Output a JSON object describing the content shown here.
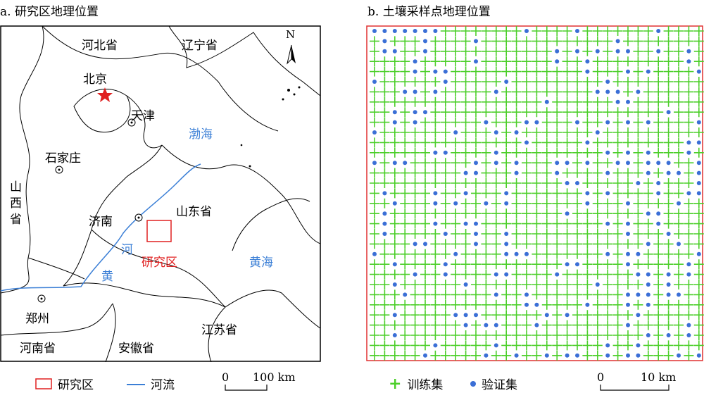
{
  "panel_a": {
    "title": "a. 研究区地理位置",
    "labels": {
      "hebei": "河北省",
      "liaoning": "辽宁省",
      "beijing": "北京",
      "tianjin": "天津",
      "bohai": "渤海",
      "shijiazhuang": "石家庄",
      "shanxi": "山西省",
      "jinan": "济南",
      "shandong": "山东省",
      "he": "河",
      "huang": "黄",
      "study_area": "研究区",
      "huanghai": "黄海",
      "zhengzhou": "郑州",
      "henan": "河南省",
      "jiangsu": "江苏省",
      "anhui": "安徽省",
      "north": "N"
    }
  },
  "panel_b": {
    "title": "b. 土壤采样点地理位置",
    "grid": {
      "columns": 33,
      "rows": 33
    },
    "colors": {
      "training": "#4ccf2a",
      "validation": "#3b6fd6",
      "border": "#e03030"
    }
  },
  "legend_a": {
    "study_area": "研究区",
    "river": "河流",
    "scale_zero": "0",
    "scale_label": "100 km",
    "colors": {
      "study_area": "#e02020",
      "river": "#3b7fd6"
    }
  },
  "legend_b": {
    "training": "训练集",
    "validation": "验证集",
    "scale_zero": "0",
    "scale_label": "10 km"
  }
}
